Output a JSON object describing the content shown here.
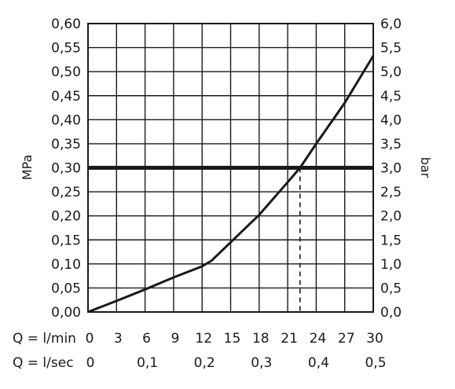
{
  "chart_data": {
    "type": "line",
    "y_left_label": "MPa",
    "y_right_label": "bar",
    "y_left_ticks": [
      "0,00",
      "0,05",
      "0,10",
      "0,15",
      "0,20",
      "0,25",
      "0,30",
      "0,35",
      "0,40",
      "0,45",
      "0,50",
      "0,55",
      "0,60"
    ],
    "y_right_ticks": [
      "0,0",
      "0,5",
      "1,0",
      "1,5",
      "2,0",
      "2,5",
      "3,0",
      "3,5",
      "4,0",
      "4,5",
      "5,0",
      "5,5",
      "6,0"
    ],
    "x_row1_label": "Q = l/min",
    "x_row1_ticks": [
      "0",
      "3",
      "6",
      "9",
      "12",
      "15",
      "18",
      "21",
      "24",
      "27",
      "30"
    ],
    "x_row2_label": "Q = l/sec",
    "x_row2_ticks": [
      "0",
      "0,1",
      "0,2",
      "0,3",
      "0,4",
      "0,5"
    ],
    "xlim": [
      0,
      30
    ],
    "ylim": [
      0,
      0.6
    ],
    "grid": true,
    "series": [
      {
        "x": [
          0,
          3,
          6,
          9,
          12,
          13,
          15,
          18,
          21,
          22.3,
          24,
          27,
          30
        ],
        "y": [
          0,
          0.023,
          0.047,
          0.072,
          0.095,
          0.107,
          0.145,
          0.202,
          0.27,
          0.3,
          0.35,
          0.435,
          0.533
        ]
      }
    ],
    "reference_line": {
      "y": 0.3
    },
    "marker": {
      "x": 22.3,
      "y": 0.3
    }
  }
}
